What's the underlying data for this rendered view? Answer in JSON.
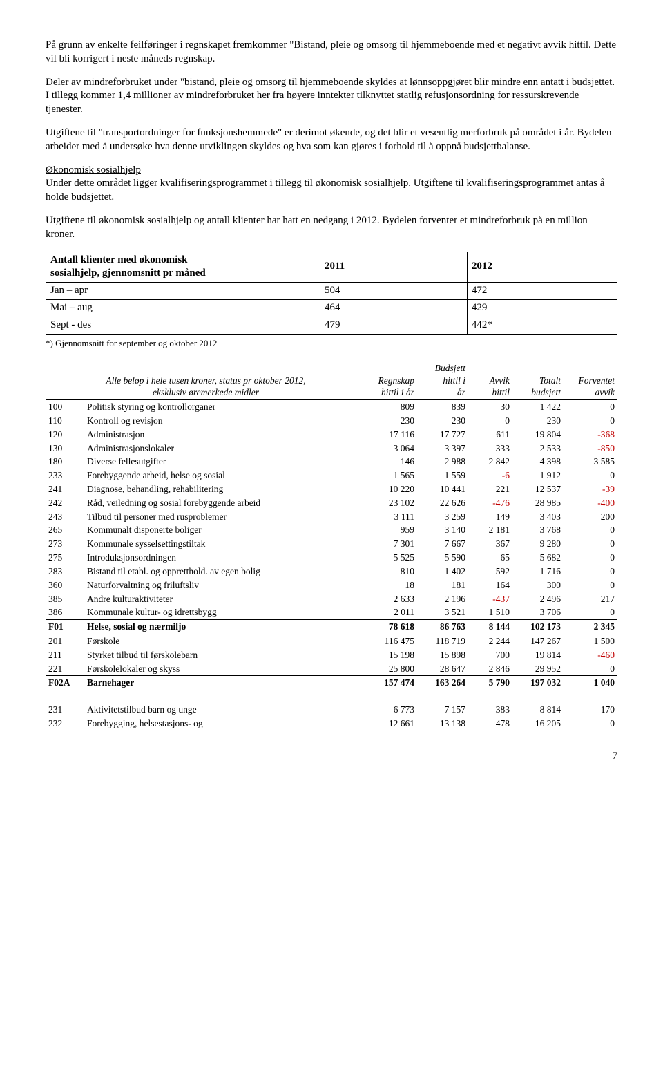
{
  "paragraphs": {
    "p1": "På grunn av enkelte feilføringer i regnskapet fremkommer \"Bistand, pleie og omsorg til hjemmeboende med et negativt avvik hittil. Dette vil bli korrigert i neste måneds regnskap.",
    "p2": "Deler av mindreforbruket under \"bistand, pleie og omsorg til hjemmeboende skyldes at lønnsoppgjøret blir mindre enn antatt i budsjettet. I tillegg kommer 1,4 millioner av mindreforbruket her fra høyere inntekter tilknyttet statlig refusjonsordning for ressurskrevende tjenester.",
    "p3": "Utgiftene til \"transportordninger for funksjonshemmede\" er derimot økende, og det blir et vesentlig merforbruk på området i år. Bydelen arbeider med å undersøke hva denne utviklingen skyldes og hva som kan gjøres i forhold til å oppnå budsjettbalanse.",
    "p4_head": "Økonomisk sosialhjelp",
    "p4": "Under dette området ligger kvalifiseringsprogrammet i tillegg til økonomisk sosialhjelp. Utgiftene til kvalifiseringsprogrammet antas å holde budsjettet.",
    "p5": "Utgiftene til økonomisk sosialhjelp og antall klienter har hatt en nedgang i 2012. Bydelen forventer et mindreforbruk på en million kroner."
  },
  "table1": {
    "header": {
      "c0a": "Antall klienter med økonomisk",
      "c0b": "sosialhjelp, gjennomsnitt pr måned",
      "c1": "2011",
      "c2": "2012"
    },
    "rows": [
      {
        "c0": "Jan – apr",
        "c1": "504",
        "c2": "472"
      },
      {
        "c0": "Mai – aug",
        "c1": "464",
        "c2": "429"
      },
      {
        "c0": "Sept - des",
        "c1": "479",
        "c2": "442*"
      }
    ],
    "note": "*) Gjennomsnitt for september og oktober 2012"
  },
  "table2": {
    "header": {
      "desc1": "Alle beløp i hele tusen kroner, status pr oktober 2012,",
      "desc2": "eksklusiv øremerkede midler",
      "col1a": "Regnskap",
      "col1b": "hittil i år",
      "col2a": "Budsjett",
      "col2b": "hittil i",
      "col2c": "år",
      "col3a": "Avvik",
      "col3b": "hittil",
      "col4a": "Totalt",
      "col4b": "budsjett",
      "col5a": "Forventet",
      "col5b": "avvik"
    },
    "rows": [
      {
        "code": "100",
        "desc": "Politisk styring og kontrollorganer",
        "r": "809",
        "b": "839",
        "a": "30",
        "t": "1 422",
        "f": "0"
      },
      {
        "code": "110",
        "desc": "Kontroll og revisjon",
        "r": "230",
        "b": "230",
        "a": "0",
        "t": "230",
        "f": "0"
      },
      {
        "code": "120",
        "desc": "Administrasjon",
        "r": "17 116",
        "b": "17 727",
        "a": "611",
        "t": "19 804",
        "f": "-368",
        "fneg": true
      },
      {
        "code": "130",
        "desc": "Administrasjonslokaler",
        "r": "3 064",
        "b": "3 397",
        "a": "333",
        "t": "2 533",
        "f": "-850",
        "fneg": true
      },
      {
        "code": "180",
        "desc": "Diverse fellesutgifter",
        "r": "146",
        "b": "2 988",
        "a": "2 842",
        "t": "4 398",
        "f": "3 585"
      },
      {
        "code": "233",
        "desc": "Forebyggende arbeid, helse og sosial",
        "r": "1 565",
        "b": "1 559",
        "a": "-6",
        "aneg": true,
        "t": "1 912",
        "f": "0"
      },
      {
        "code": "241",
        "desc": "Diagnose, behandling, rehabilitering",
        "r": "10 220",
        "b": "10 441",
        "a": "221",
        "t": "12 537",
        "f": "-39",
        "fneg": true
      },
      {
        "code": "242",
        "desc": "Råd, veiledning og sosial forebyggende arbeid",
        "r": "23 102",
        "b": "22 626",
        "a": "-476",
        "aneg": true,
        "t": "28 985",
        "f": "-400",
        "fneg": true
      },
      {
        "code": "243",
        "desc": "Tilbud til personer med rusproblemer",
        "r": "3 111",
        "b": "3 259",
        "a": "149",
        "t": "3 403",
        "f": "200"
      },
      {
        "code": "265",
        "desc": "Kommunalt disponerte boliger",
        "r": "959",
        "b": "3 140",
        "a": "2 181",
        "t": "3 768",
        "f": "0"
      },
      {
        "code": "273",
        "desc": "Kommunale sysselsettingstiltak",
        "r": "7 301",
        "b": "7 667",
        "a": "367",
        "t": "9 280",
        "f": "0"
      },
      {
        "code": "275",
        "desc": "Introduksjonsordningen",
        "r": "5 525",
        "b": "5 590",
        "a": "65",
        "t": "5 682",
        "f": "0"
      },
      {
        "code": "283",
        "desc": "Bistand til etabl. og oppretthold. av egen bolig",
        "r": "810",
        "b": "1 402",
        "a": "592",
        "t": "1 716",
        "f": "0"
      },
      {
        "code": "360",
        "desc": "Naturforvaltning og friluftsliv",
        "r": "18",
        "b": "181",
        "a": "164",
        "t": "300",
        "f": "0"
      },
      {
        "code": "385",
        "desc": "Andre kulturaktiviteter",
        "r": "2 633",
        "b": "2 196",
        "a": "-437",
        "aneg": true,
        "t": "2 496",
        "f": "217"
      },
      {
        "code": "386",
        "desc": "Kommunale kultur- og idrettsbygg",
        "r": "2 011",
        "b": "3 521",
        "a": "1 510",
        "t": "3 706",
        "f": "0"
      },
      {
        "code": "F01",
        "desc": "Helse, sosial og nærmiljø",
        "r": "78 618",
        "b": "86 763",
        "a": "8 144",
        "t": "102 173",
        "f": "2 345",
        "section": true
      },
      {
        "code": "201",
        "desc": "Førskole",
        "r": "116 475",
        "b": "118 719",
        "a": "2 244",
        "t": "147 267",
        "f": "1 500"
      },
      {
        "code": "211",
        "desc": "Styrket tilbud til førskolebarn",
        "r": "15 198",
        "b": "15 898",
        "a": "700",
        "t": "19 814",
        "f": "-460",
        "fneg": true
      },
      {
        "code": "221",
        "desc": "Førskolelokaler og skyss",
        "r": "25 800",
        "b": "28 647",
        "a": "2 846",
        "t": "29 952",
        "f": "0"
      },
      {
        "code": "F02A",
        "desc": "Barnehager",
        "r": "157 474",
        "b": "163 264",
        "a": "5 790",
        "t": "197 032",
        "f": "1 040",
        "section": true
      }
    ]
  },
  "table3": {
    "rows": [
      {
        "code": "231",
        "desc": "Aktivitetstilbud barn og unge",
        "r": "6 773",
        "b": "7 157",
        "a": "383",
        "t": "8 814",
        "f": "170"
      },
      {
        "code": "232",
        "desc": "Forebygging, helsestasjons- og",
        "r": "12 661",
        "b": "13 138",
        "a": "478",
        "t": "16 205",
        "f": "0"
      }
    ]
  },
  "page_number": "7"
}
